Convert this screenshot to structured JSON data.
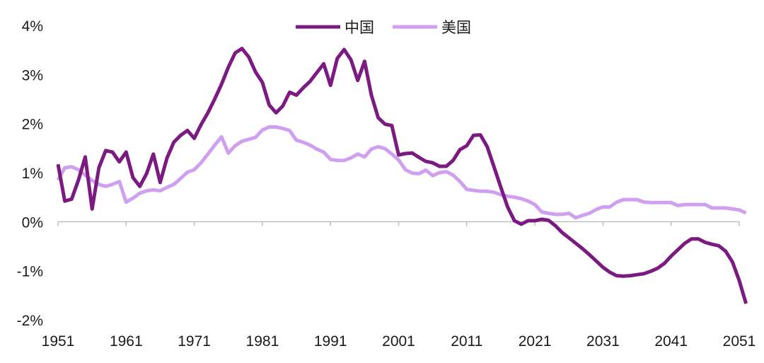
{
  "chart_data": {
    "type": "line",
    "title": "",
    "xlabel": "",
    "ylabel": "",
    "ylim": [
      -2,
      4
    ],
    "xlim": [
      1951,
      2051
    ],
    "y_ticks": [
      -2,
      -1,
      0,
      1,
      2,
      3,
      4
    ],
    "y_tick_labels": [
      "-2%",
      "-1%",
      "0%",
      "1%",
      "2%",
      "3%",
      "4%"
    ],
    "x_ticks": [
      1951,
      1961,
      1971,
      1981,
      1991,
      2001,
      2011,
      2021,
      2031,
      2041,
      2051
    ],
    "x_tick_labels": [
      "1951",
      "1961",
      "1971",
      "1981",
      "1991",
      "2001",
      "2011",
      "2021",
      "2031",
      "2041",
      "2051"
    ],
    "grid": false,
    "legend_position": "top-center",
    "x": [
      1951,
      1952,
      1953,
      1954,
      1955,
      1956,
      1957,
      1958,
      1959,
      1960,
      1961,
      1962,
      1963,
      1964,
      1965,
      1966,
      1967,
      1968,
      1969,
      1970,
      1971,
      1972,
      1973,
      1974,
      1975,
      1976,
      1977,
      1978,
      1979,
      1980,
      1981,
      1982,
      1983,
      1984,
      1985,
      1986,
      1987,
      1988,
      1989,
      1990,
      1991,
      1992,
      1993,
      1994,
      1995,
      1996,
      1997,
      1998,
      1999,
      2000,
      2001,
      2002,
      2003,
      2004,
      2005,
      2006,
      2007,
      2008,
      2009,
      2010,
      2011,
      2012,
      2013,
      2014,
      2015,
      2016,
      2017,
      2018,
      2019,
      2020,
      2021,
      2022,
      2023,
      2024,
      2025,
      2026,
      2027,
      2028,
      2029,
      2030,
      2031,
      2032,
      2033,
      2034,
      2035,
      2036,
      2037,
      2038,
      2039,
      2040,
      2041,
      2042,
      2043,
      2044,
      2045,
      2046,
      2047,
      2048,
      2049,
      2050,
      2051,
      2052
    ],
    "series": [
      {
        "name": "中国",
        "color": "#7b1a80",
        "values": [
          1.17,
          0.42,
          0.46,
          0.85,
          1.32,
          0.26,
          1.1,
          1.45,
          1.42,
          1.22,
          1.42,
          0.9,
          0.72,
          0.98,
          1.38,
          0.8,
          1.3,
          1.62,
          1.76,
          1.86,
          1.7,
          1.98,
          2.22,
          2.5,
          2.8,
          3.15,
          3.44,
          3.53,
          3.36,
          3.05,
          2.84,
          2.38,
          2.22,
          2.36,
          2.64,
          2.58,
          2.73,
          2.86,
          3.04,
          3.22,
          2.78,
          3.33,
          3.51,
          3.3,
          2.88,
          3.27,
          2.58,
          2.12,
          1.99,
          1.96,
          1.36,
          1.39,
          1.4,
          1.31,
          1.23,
          1.2,
          1.13,
          1.13,
          1.25,
          1.47,
          1.55,
          1.76,
          1.77,
          1.53,
          1.12,
          0.7,
          0.3,
          0.02,
          -0.05,
          0.02,
          0.02,
          0.05,
          0.03,
          -0.08,
          -0.22,
          -0.33,
          -0.44,
          -0.55,
          -0.67,
          -0.8,
          -0.93,
          -1.03,
          -1.1,
          -1.11,
          -1.1,
          -1.08,
          -1.06,
          -1.01,
          -0.95,
          -0.85,
          -0.7,
          -0.57,
          -0.44,
          -0.35,
          -0.35,
          -0.42,
          -0.46,
          -0.49,
          -0.6,
          -0.82,
          -1.2,
          -1.67
        ]
      },
      {
        "name": "美国",
        "color": "#cfa0f0",
        "values": [
          0.85,
          1.1,
          1.12,
          1.06,
          0.95,
          0.84,
          0.76,
          0.72,
          0.76,
          0.82,
          0.4,
          0.48,
          0.58,
          0.63,
          0.65,
          0.63,
          0.7,
          0.76,
          0.88,
          1.01,
          1.06,
          1.2,
          1.38,
          1.56,
          1.73,
          1.4,
          1.55,
          1.64,
          1.68,
          1.72,
          1.87,
          1.93,
          1.93,
          1.9,
          1.86,
          1.66,
          1.62,
          1.56,
          1.48,
          1.42,
          1.27,
          1.25,
          1.25,
          1.3,
          1.38,
          1.32,
          1.48,
          1.53,
          1.49,
          1.38,
          1.26,
          1.06,
          0.99,
          0.98,
          1.05,
          0.94,
          1.0,
          1.02,
          0.95,
          0.82,
          0.66,
          0.64,
          0.62,
          0.62,
          0.6,
          0.55,
          0.52,
          0.5,
          0.47,
          0.42,
          0.35,
          0.2,
          0.17,
          0.15,
          0.15,
          0.17,
          0.08,
          0.13,
          0.17,
          0.25,
          0.3,
          0.3,
          0.4,
          0.45,
          0.45,
          0.45,
          0.4,
          0.39,
          0.39,
          0.39,
          0.39,
          0.33,
          0.35,
          0.35,
          0.35,
          0.35,
          0.28,
          0.28,
          0.28,
          0.26,
          0.24,
          0.18
        ]
      }
    ]
  }
}
